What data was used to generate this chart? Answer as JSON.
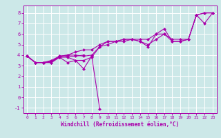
{
  "background_color": "#cce8e8",
  "grid_color": "#ffffff",
  "line_color": "#aa00aa",
  "marker_color": "#aa00aa",
  "xlabel": "Windchill (Refroidissement éolien,°C)",
  "xlabel_color": "#aa00aa",
  "tick_color": "#aa00aa",
  "xlim": [
    -0.5,
    23.5
  ],
  "ylim": [
    -1.5,
    8.7
  ],
  "yticks": [
    -1,
    0,
    1,
    2,
    3,
    4,
    5,
    6,
    7,
    8
  ],
  "xticks": [
    0,
    1,
    2,
    3,
    4,
    5,
    6,
    7,
    8,
    9,
    10,
    11,
    12,
    13,
    14,
    15,
    16,
    17,
    18,
    19,
    20,
    21,
    22,
    23
  ],
  "series": [
    [
      3.9,
      3.3,
      3.3,
      3.3,
      3.8,
      3.3,
      3.5,
      2.7,
      3.9,
      null,
      null,
      null,
      null,
      null,
      null,
      null,
      null,
      null,
      null,
      null,
      null,
      null,
      null,
      null
    ],
    [
      3.9,
      3.3,
      3.3,
      3.3,
      3.8,
      3.8,
      3.5,
      3.5,
      3.8,
      4.8,
      5.0,
      5.3,
      5.3,
      5.5,
      5.3,
      5.0,
      5.5,
      6.0,
      5.3,
      5.3,
      5.5,
      7.8,
      8.0,
      8.0
    ],
    [
      3.9,
      3.3,
      3.3,
      3.5,
      3.9,
      4.0,
      4.0,
      3.9,
      4.0,
      4.8,
      5.3,
      5.3,
      5.5,
      5.5,
      5.5,
      5.5,
      6.0,
      6.0,
      5.5,
      5.5,
      5.5,
      7.8,
      7.0,
      8.0
    ],
    [
      3.9,
      3.3,
      3.3,
      3.4,
      3.8,
      3.9,
      3.9,
      4.0,
      null,
      null,
      null,
      null,
      null,
      null,
      null,
      null,
      null,
      null,
      null,
      null,
      null,
      null,
      null,
      null
    ],
    [
      3.9,
      3.3,
      3.3,
      3.4,
      3.9,
      4.0,
      4.3,
      4.5,
      4.5,
      5.0,
      5.3,
      5.3,
      5.5,
      5.5,
      5.3,
      4.8,
      6.0,
      6.5,
      5.3,
      5.3,
      5.5,
      7.8,
      8.0,
      8.0
    ]
  ],
  "spike_series": [
    null,
    null,
    null,
    null,
    null,
    null,
    null,
    null,
    3.9,
    -1.1,
    null,
    null,
    null,
    null,
    null,
    null,
    null,
    null,
    null,
    null,
    null,
    null,
    null,
    null
  ],
  "figsize": [
    3.2,
    2.0
  ],
  "dpi": 100
}
